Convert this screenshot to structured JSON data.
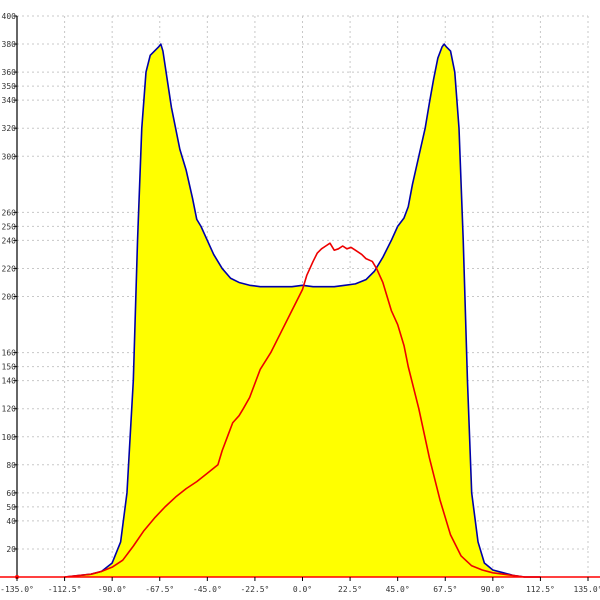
{
  "chart_data": {
    "type": "area",
    "title": "",
    "xlabel": "",
    "ylabel": "",
    "xlim": [
      -135,
      135
    ],
    "ylim": [
      0,
      400
    ],
    "grid": true,
    "x_ticks": [
      -135,
      -112.5,
      -90,
      -67.5,
      -45,
      -22.5,
      0,
      22.5,
      45,
      67.5,
      90,
      112.5,
      135
    ],
    "x_tick_labels": [
      "-135.0°",
      "-112.5°",
      "-90.0°",
      "-67.5°",
      "-45.0°",
      "-22.5°",
      "0.0°",
      "22.5°",
      "45.0°",
      "67.5°",
      "90.0°",
      "112.5°",
      "135.0°"
    ],
    "y_ticks": [
      0,
      20,
      40,
      50,
      60,
      80,
      100,
      120,
      140,
      150,
      160,
      200,
      220,
      240,
      250,
      260,
      300,
      320,
      340,
      350,
      360,
      380,
      400
    ],
    "y_tick_labels": [
      "0",
      "20",
      "40",
      "50",
      "60",
      "80",
      "100",
      "120",
      "140",
      "150",
      "160",
      "200",
      "220",
      "240",
      "250",
      "260",
      "300",
      "320",
      "340",
      "350",
      "360",
      "380",
      "400"
    ],
    "colors": {
      "area_fill": "#ffff00",
      "area_line": "#0000aa",
      "second_line": "#ee0000",
      "baseline": "#ff0000",
      "axis": "#000000",
      "grid": "#c8c8c8"
    },
    "series": [
      {
        "style": "filled-area",
        "x": [
          -112.5,
          -100,
          -95,
          -90,
          -86,
          -83,
          -80,
          -78,
          -76,
          -74,
          -72,
          -70,
          -68,
          -67,
          -66,
          -64,
          -62,
          -60,
          -58,
          -55,
          -52,
          -50,
          -48,
          -45,
          -42,
          -38,
          -34,
          -30,
          -25,
          -20,
          -15,
          -10,
          -5,
          0,
          5,
          10,
          15,
          20,
          25,
          30,
          34,
          38,
          42,
          45,
          48,
          50,
          52,
          55,
          58,
          60,
          62,
          64,
          66,
          67,
          68,
          70,
          72,
          74,
          76,
          78,
          80,
          83,
          86,
          90,
          95,
          100,
          105,
          112.5
        ],
        "y": [
          0,
          2,
          4,
          10,
          25,
          60,
          140,
          240,
          320,
          360,
          372,
          375,
          378,
          380,
          375,
          355,
          335,
          320,
          305,
          290,
          270,
          255,
          250,
          240,
          230,
          220,
          213,
          210,
          208,
          207,
          207,
          207,
          207,
          208,
          207,
          207,
          207,
          208,
          209,
          212,
          218,
          228,
          240,
          250,
          256,
          264,
          280,
          300,
          320,
          338,
          355,
          370,
          378,
          380,
          378,
          375,
          360,
          320,
          240,
          140,
          60,
          25,
          10,
          5,
          3,
          1,
          0,
          0
        ]
      },
      {
        "style": "line",
        "x": [
          -112.5,
          -100,
          -95,
          -90,
          -85,
          -80,
          -75,
          -70,
          -65,
          -60,
          -55,
          -50,
          -45,
          -40,
          -38,
          -35,
          -33,
          -30,
          -28,
          -25,
          -22,
          -20,
          -15,
          -10,
          -5,
          0,
          2,
          5,
          7,
          9,
          11,
          13,
          15,
          17,
          19,
          21,
          23,
          25,
          28,
          30,
          33,
          35,
          38,
          40,
          42,
          45,
          48,
          50,
          55,
          60,
          65,
          70,
          75,
          80,
          85,
          90,
          95,
          100,
          105,
          112.5
        ],
        "y": [
          0,
          2,
          4,
          7,
          12,
          22,
          33,
          42,
          50,
          57,
          63,
          68,
          74,
          80,
          90,
          102,
          110,
          115,
          120,
          128,
          140,
          148,
          160,
          175,
          190,
          205,
          215,
          225,
          231,
          234,
          236,
          238,
          233,
          234,
          236,
          234,
          235,
          233,
          230,
          227,
          225,
          220,
          210,
          200,
          190,
          180,
          165,
          150,
          120,
          85,
          55,
          30,
          15,
          8,
          5,
          3,
          2,
          1,
          0,
          0
        ]
      }
    ]
  }
}
